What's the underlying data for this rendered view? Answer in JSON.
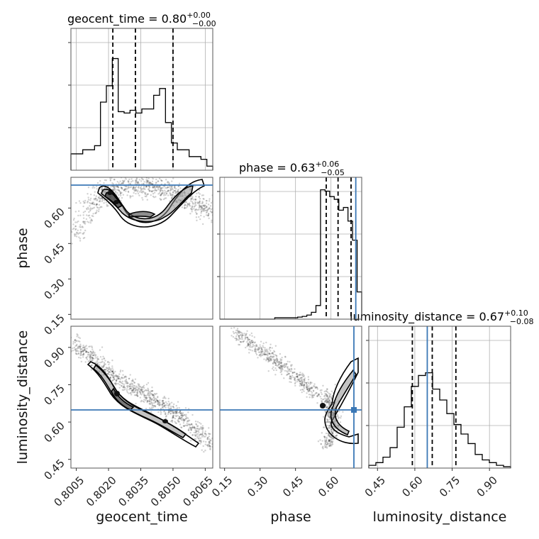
{
  "chart_data": {
    "type": "corner",
    "parameters": [
      {
        "name": "geocent_time",
        "label": "geocent_time",
        "median": "0.80",
        "plus": "+0.00",
        "minus": "−0.00",
        "range": [
          0.80025,
          0.80685
        ],
        "ticks": [
          "0.8005",
          "0.8020",
          "0.8035",
          "0.8050",
          "0.8065"
        ],
        "tick_values": [
          0.8005,
          0.802,
          0.8035,
          0.805,
          0.8065
        ],
        "quantiles": [
          0.8022,
          0.80325,
          0.805
        ],
        "injection": null,
        "hist": [
          0.12,
          0.12,
          0.15,
          0.15,
          0.18,
          0.5,
          0.62,
          0.82,
          0.43,
          0.42,
          0.44,
          0.42,
          0.45,
          0.45,
          0.55,
          0.6,
          0.35,
          0.2,
          0.15,
          0.15,
          0.1,
          0.1,
          0.08,
          0.03
        ]
      },
      {
        "name": "phase",
        "label": "phase",
        "median": "0.63",
        "plus": "+0.06",
        "minus": "−0.05",
        "range": [
          0.13,
          0.73
        ],
        "ticks": [
          "0.15",
          "0.30",
          "0.45",
          "0.60"
        ],
        "tick_values": [
          0.15,
          0.3,
          0.45,
          0.6
        ],
        "quantiles": [
          0.58,
          0.63,
          0.685
        ],
        "injection": 0.705,
        "hist": [
          0,
          0,
          0,
          0,
          0,
          0,
          0,
          0,
          0,
          0,
          0,
          0,
          0.01,
          0.01,
          0.01,
          0.01,
          0.01,
          0.015,
          0.02,
          0.03,
          0.05,
          0.1,
          0.95,
          0.94,
          0.9,
          0.88,
          0.8,
          0.82,
          0.72,
          0.58,
          0.2
        ]
      },
      {
        "name": "luminosity_distance",
        "label": "luminosity_distance",
        "median": "0.67",
        "plus": "+0.10",
        "minus": "−0.08",
        "range": [
          0.415,
          0.985
        ],
        "ticks": [
          "0.45",
          "0.60",
          "0.75",
          "0.90"
        ],
        "tick_values": [
          0.45,
          0.6,
          0.75,
          0.9
        ],
        "quantiles": [
          0.59,
          0.67,
          0.765
        ],
        "injection": 0.65,
        "hist": [
          0.02,
          0.04,
          0.08,
          0.15,
          0.3,
          0.45,
          0.6,
          0.68,
          0.7,
          0.58,
          0.5,
          0.4,
          0.32,
          0.25,
          0.18,
          0.1,
          0.06,
          0.04,
          0.02,
          0.01
        ]
      }
    ]
  }
}
